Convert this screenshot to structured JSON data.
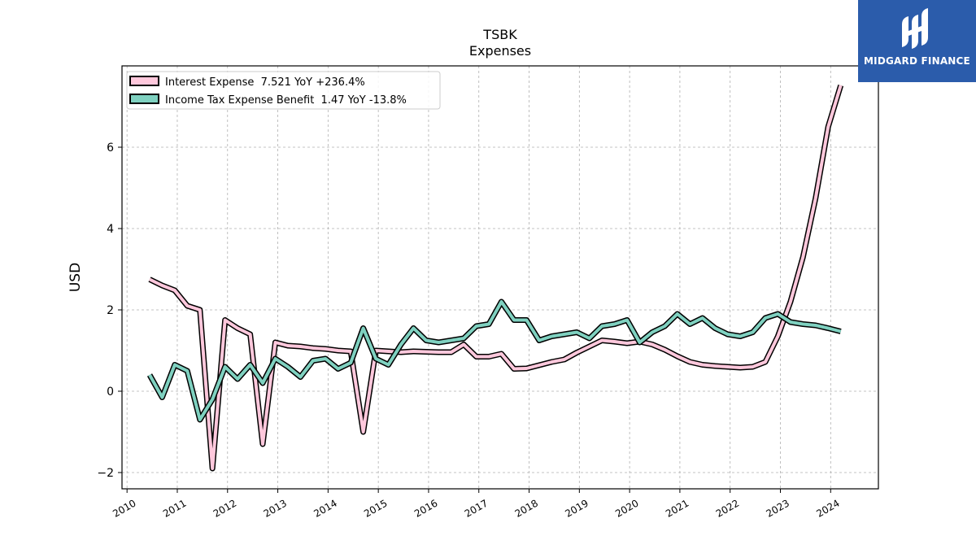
{
  "brand": {
    "name": "MIDGARD FINANCE",
    "bg_color": "#2b5cab"
  },
  "chart_data": {
    "type": "line",
    "title": "TSBK",
    "subtitle": "Expenses",
    "xlabel": "",
    "ylabel": "USD",
    "xlim": [
      2009.9,
      2024.95
    ],
    "ylim": [
      -2.4,
      8.0
    ],
    "yticks": [
      -2,
      0,
      2,
      4,
      6
    ],
    "ytick_labels": [
      "−2",
      "0",
      "2",
      "4",
      "6"
    ],
    "xticks": [
      2010,
      2011,
      2012,
      2013,
      2014,
      2015,
      2016,
      2017,
      2018,
      2019,
      2020,
      2021,
      2022,
      2023,
      2024
    ],
    "xtick_labels": [
      "2010",
      "2011",
      "2012",
      "2013",
      "2014",
      "2015",
      "2016",
      "2017",
      "2018",
      "2019",
      "2020",
      "2021",
      "2022",
      "2023",
      "2024"
    ],
    "grid": true,
    "legend_position": "top-left",
    "series": [
      {
        "name": "Interest Expense",
        "legend_label": "Interest Expense  7.521 YoY +236.4%",
        "color": "#ffc8dc",
        "x": [
          2010.45,
          2010.7,
          2010.95,
          2011.2,
          2011.45,
          2011.7,
          2011.95,
          2012.2,
          2012.45,
          2012.7,
          2012.95,
          2013.2,
          2013.45,
          2013.7,
          2013.95,
          2014.2,
          2014.45,
          2014.7,
          2014.95,
          2015.2,
          2015.45,
          2015.7,
          2015.95,
          2016.2,
          2016.45,
          2016.7,
          2016.95,
          2017.2,
          2017.45,
          2017.7,
          2017.95,
          2018.2,
          2018.45,
          2018.7,
          2018.95,
          2019.2,
          2019.45,
          2019.7,
          2019.95,
          2020.2,
          2020.45,
          2020.7,
          2020.95,
          2021.2,
          2021.45,
          2021.7,
          2021.95,
          2022.2,
          2022.45,
          2022.7,
          2022.95,
          2023.2,
          2023.45,
          2023.7,
          2023.95,
          2024.2
        ],
        "values": [
          2.75,
          2.6,
          2.48,
          2.1,
          2.0,
          -1.9,
          1.75,
          1.55,
          1.4,
          -1.3,
          1.2,
          1.12,
          1.1,
          1.06,
          1.04,
          1.0,
          0.98,
          -1.0,
          1.0,
          0.98,
          0.96,
          0.98,
          0.97,
          0.96,
          0.96,
          1.15,
          0.85,
          0.85,
          0.92,
          0.55,
          0.56,
          0.64,
          0.72,
          0.78,
          0.95,
          1.1,
          1.25,
          1.22,
          1.18,
          1.22,
          1.15,
          1.02,
          0.86,
          0.72,
          0.65,
          0.62,
          0.6,
          0.58,
          0.6,
          0.72,
          1.35,
          2.2,
          3.3,
          4.75,
          6.5,
          7.52
        ]
      },
      {
        "name": "Income Tax Expense Benefit",
        "legend_label": "Income Tax Expense Benefit  1.47 YoY -13.8%",
        "color": "#7fd1c0",
        "x": [
          2010.45,
          2010.7,
          2010.95,
          2011.2,
          2011.45,
          2011.7,
          2011.95,
          2012.2,
          2012.45,
          2012.7,
          2012.95,
          2013.2,
          2013.45,
          2013.7,
          2013.95,
          2014.2,
          2014.45,
          2014.7,
          2014.95,
          2015.2,
          2015.45,
          2015.7,
          2015.95,
          2016.2,
          2016.45,
          2016.7,
          2016.95,
          2017.2,
          2017.45,
          2017.7,
          2017.95,
          2018.2,
          2018.45,
          2018.7,
          2018.95,
          2019.2,
          2019.45,
          2019.7,
          2019.95,
          2020.2,
          2020.45,
          2020.7,
          2020.95,
          2021.2,
          2021.45,
          2021.7,
          2021.95,
          2022.2,
          2022.45,
          2022.7,
          2022.95,
          2023.2,
          2023.45,
          2023.7,
          2023.95,
          2024.2
        ],
        "values": [
          0.4,
          -0.15,
          0.65,
          0.5,
          -0.7,
          -0.2,
          0.6,
          0.3,
          0.65,
          0.2,
          0.8,
          0.6,
          0.35,
          0.75,
          0.8,
          0.55,
          0.7,
          1.55,
          0.8,
          0.65,
          1.15,
          1.55,
          1.25,
          1.2,
          1.25,
          1.3,
          1.6,
          1.65,
          2.2,
          1.75,
          1.75,
          1.25,
          1.35,
          1.4,
          1.45,
          1.3,
          1.6,
          1.65,
          1.75,
          1.2,
          1.45,
          1.6,
          1.9,
          1.65,
          1.8,
          1.55,
          1.4,
          1.35,
          1.45,
          1.8,
          1.9,
          1.7,
          1.65,
          1.62,
          1.55,
          1.47
        ]
      }
    ]
  }
}
